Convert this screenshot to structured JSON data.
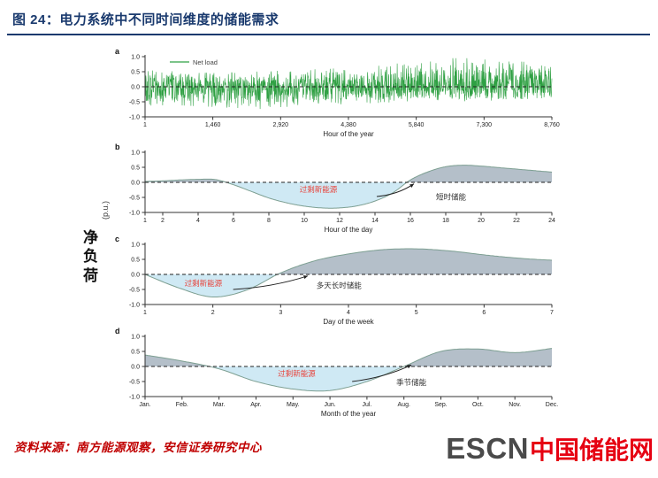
{
  "header": {
    "title": "图 24：电力系统中不同时间维度的储能需求"
  },
  "figure": {
    "y_axis_label": "净负荷",
    "y_axis_unit": "(p.u.)"
  },
  "footer": {
    "source": "资料来源：南方能源观察，安信证券研究中心",
    "logo_en": "ESCN",
    "logo_cn": "中国储能网"
  },
  "colors": {
    "title_navy": "#1a3a6e",
    "noise_green": "#2fa043",
    "area_gray": "#b4bfc9",
    "area_blue": "#cfe9f4",
    "curve": "#7d9f92",
    "annotation_red": "#e8433b",
    "annotation_black": "#333333",
    "axis": "#333333",
    "zero_dash": "#222222",
    "source_red": "#c00000",
    "logo_gray": "#4a4a4a",
    "logo_red": "#e60012"
  },
  "chart_data": [
    {
      "id": "a",
      "panel_label": "a",
      "type": "line",
      "legend": "Net load",
      "xlabel": "Hour of the year",
      "xlim": [
        1,
        8760
      ],
      "x_tick_values": [
        1,
        1460,
        2920,
        4380,
        5840,
        7300,
        8760
      ],
      "x_tick_labels": [
        "1",
        "1,460",
        "2,920",
        "4,380",
        "5,840",
        "7,300",
        "8,760"
      ],
      "ylim": [
        -1,
        1
      ],
      "y_tick_values": [
        1.0,
        0.5,
        0.0,
        -0.5,
        -1.0
      ],
      "y_tick_labels": [
        "1.0",
        "0.5",
        "0.0",
        "-0.5",
        "-1.0"
      ],
      "description": "High-frequency net-load signal oscillating around zero for all 8760 hours of the year; positive spikes grow toward hours 5840-7300 (up to ~0.95), negative spikes reach ~-0.75 early in the year.",
      "noise": {
        "seed": 20,
        "points": 1500,
        "positive_envelope": [
          0.55,
          0.5,
          0.45,
          0.5,
          0.55,
          0.6,
          0.65,
          0.8,
          0.95,
          0.95,
          0.85,
          0.8
        ],
        "negative_envelope": [
          0.7,
          0.62,
          0.68,
          0.75,
          0.65,
          0.6,
          0.55,
          0.5,
          0.45,
          0.5,
          0.45,
          0.4
        ]
      }
    },
    {
      "id": "b",
      "panel_label": "b",
      "type": "area",
      "xlabel": "Hour of the day",
      "xlim": [
        1,
        24
      ],
      "x_tick_values": [
        1,
        2,
        4,
        6,
        8,
        10,
        12,
        14,
        16,
        18,
        20,
        22,
        24
      ],
      "x_tick_labels": [
        "1",
        "2",
        "4",
        "6",
        "8",
        "10",
        "12",
        "14",
        "16",
        "18",
        "20",
        "22",
        "24"
      ],
      "ylim": [
        -1,
        1
      ],
      "y_tick_values": [
        1.0,
        0.5,
        0.0,
        -0.5,
        -1.0
      ],
      "y_tick_labels": [
        "1.0",
        "0.5",
        "0.0",
        "-0.5",
        "-1.0"
      ],
      "x": [
        1,
        2,
        3,
        4,
        5,
        6,
        7,
        8,
        9,
        10,
        11,
        12,
        13,
        14,
        15,
        16,
        17,
        18,
        19,
        20,
        21,
        22,
        23,
        24
      ],
      "y": [
        0.03,
        0.05,
        0.08,
        0.1,
        0.09,
        -0.08,
        -0.3,
        -0.52,
        -0.68,
        -0.79,
        -0.85,
        -0.85,
        -0.78,
        -0.62,
        -0.35,
        0.08,
        0.35,
        0.52,
        0.57,
        0.54,
        0.49,
        0.44,
        0.39,
        0.34
      ],
      "annotations": [
        {
          "text": "过剩新能源",
          "x": 10.8,
          "y": -0.33,
          "color": "red"
        },
        {
          "text": "短时储能",
          "x": 18.3,
          "y": -0.58,
          "color": "black"
        }
      ],
      "arrow": {
        "x1": 14.1,
        "y1": -0.47,
        "x2": 16.2,
        "y2": -0.05
      }
    },
    {
      "id": "c",
      "panel_label": "c",
      "type": "area",
      "xlabel": "Day of the week",
      "xlim": [
        1,
        7
      ],
      "x_tick_values": [
        1,
        2,
        3,
        4,
        5,
        6,
        7
      ],
      "x_tick_labels": [
        "1",
        "2",
        "3",
        "4",
        "5",
        "6",
        "7"
      ],
      "ylim": [
        -1,
        1
      ],
      "y_tick_values": [
        1.0,
        0.5,
        0.0,
        -0.5,
        -1.0
      ],
      "y_tick_labels": [
        "1.0",
        "0.5",
        "0.0",
        "-0.5",
        "-1.0"
      ],
      "x": [
        1,
        1.5,
        2,
        2.5,
        3,
        3.5,
        4,
        4.5,
        5,
        5.5,
        6,
        6.5,
        7
      ],
      "y": [
        0.0,
        -0.45,
        -0.75,
        -0.52,
        0.05,
        0.45,
        0.68,
        0.82,
        0.85,
        0.78,
        0.65,
        0.54,
        0.47
      ],
      "annotations": [
        {
          "text": "过剩新能源",
          "x": 1.86,
          "y": -0.38,
          "color": "red"
        },
        {
          "text": "多天长时储能",
          "x": 3.86,
          "y": -0.45,
          "color": "black"
        }
      ],
      "arrow": {
        "x1": 2.3,
        "y1": -0.5,
        "x2": 3.4,
        "y2": -0.05
      }
    },
    {
      "id": "d",
      "panel_label": "d",
      "type": "area",
      "xlabel": "Month of the year",
      "xlim": [
        1,
        12
      ],
      "x_tick_values": [
        1,
        2,
        3,
        4,
        5,
        6,
        7,
        8,
        9,
        10,
        11,
        12
      ],
      "x_tick_labels": [
        "Jan.",
        "Feb.",
        "Mar.",
        "Apr.",
        "May.",
        "Jun.",
        "Jul.",
        "Aug.",
        "Sep.",
        "Oct.",
        "Nov.",
        "Dec."
      ],
      "ylim": [
        -1,
        1
      ],
      "y_tick_values": [
        1.0,
        0.5,
        0.0,
        -0.5,
        -1.0
      ],
      "y_tick_labels": [
        "1.0",
        "0.5",
        "0.0",
        "-0.5",
        "-1.0"
      ],
      "x": [
        1,
        2,
        3,
        4,
        5,
        6,
        7,
        8,
        9,
        10,
        11,
        12
      ],
      "y": [
        0.38,
        0.18,
        -0.08,
        -0.5,
        -0.75,
        -0.8,
        -0.5,
        0.0,
        0.5,
        0.58,
        0.46,
        0.6
      ],
      "annotations": [
        {
          "text": "过剩新能源",
          "x": 5.1,
          "y": -0.33,
          "color": "red"
        },
        {
          "text": "季节储能",
          "x": 8.2,
          "y": -0.62,
          "color": "black"
        }
      ],
      "arrow": {
        "x1": 6.6,
        "y1": -0.5,
        "x2": 8.2,
        "y2": 0.05
      }
    }
  ]
}
